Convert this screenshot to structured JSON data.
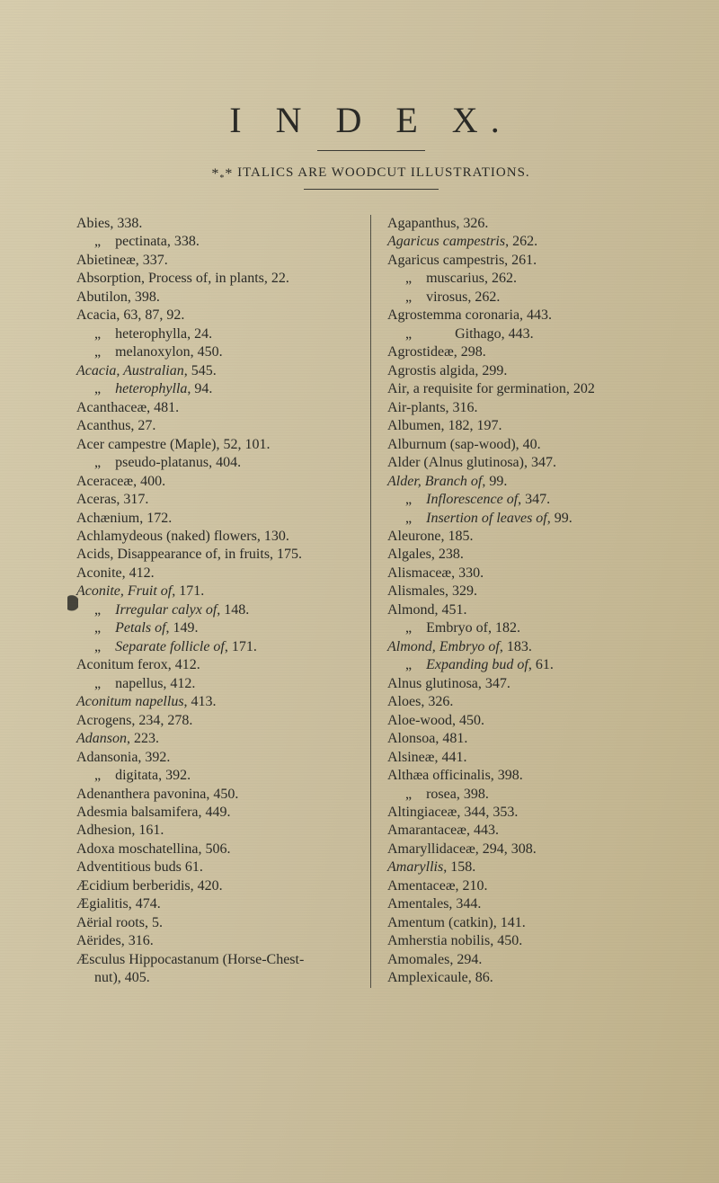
{
  "title": "I N D E X.",
  "subtitle_prefix": "*",
  "subtitle_sub": "*",
  "subtitle_suffix": "*",
  "subtitle_text": " ITALICS ARE WOODCUT ILLUSTRATIONS.",
  "left": [
    {
      "t": "Abies, 338."
    },
    {
      "t": "     „    pectinata, 338.",
      "s": 1
    },
    {
      "t": "Abietineæ, 337."
    },
    {
      "t": "Absorption, Process of, in plants, 22."
    },
    {
      "t": "Abutilon, 398."
    },
    {
      "t": "Acacia, 63, 87, 92."
    },
    {
      "t": "     „    heterophylla, 24.",
      "s": 1
    },
    {
      "t": "     „    melanoxylon, 450.",
      "s": 1
    },
    {
      "html": "<span class='it'>Acacia, Australian</span>, 545."
    },
    {
      "html": "     „    <span class='it'>heterophylla</span>, 94.",
      "s": 1
    },
    {
      "t": "Acanthaceæ, 481."
    },
    {
      "t": "Acanthus, 27."
    },
    {
      "t": "Acer campestre (Maple), 52, 101."
    },
    {
      "t": "     „    pseudo-platanus, 404.",
      "s": 1
    },
    {
      "t": "Aceraceæ, 400."
    },
    {
      "t": "Aceras, 317."
    },
    {
      "t": "Achænium, 172."
    },
    {
      "t": "Achlamydeous (naked) flowers, 130."
    },
    {
      "t": "Acids, Disappearance of, in fruits, 175."
    },
    {
      "t": "Aconite, 412."
    },
    {
      "html": "<span class='it'>Aconite, Fruit of</span>, 171."
    },
    {
      "html": "     „    <span class='it'>Irregular calyx of</span>, 148.",
      "s": 1
    },
    {
      "html": "     „    <span class='it'>Petals of</span>, 149.",
      "s": 1
    },
    {
      "html": "     „    <span class='it'>Separate follicle of</span>, 171.",
      "s": 1
    },
    {
      "t": "Aconitum ferox, 412."
    },
    {
      "t": "     „    napellus, 412.",
      "s": 1
    },
    {
      "html": "<span class='it'>Aconitum napellus</span>, 413."
    },
    {
      "t": "Acrogens, 234, 278."
    },
    {
      "html": "<span class='it'>Adanson</span>, 223."
    },
    {
      "t": "Adansonia, 392."
    },
    {
      "t": "     „    digitata, 392.",
      "s": 1
    },
    {
      "t": "Adenanthera pavonina, 450."
    },
    {
      "t": "Adesmia balsamifera, 449."
    },
    {
      "t": "Adhesion, 161."
    },
    {
      "t": "Adoxa moschatellina, 506."
    },
    {
      "t": "Adventitious buds 61."
    },
    {
      "t": "Æcidium berberidis, 420."
    },
    {
      "t": "Ægialitis, 474."
    },
    {
      "t": "Aërial roots, 5."
    },
    {
      "t": "Aërides, 316."
    },
    {
      "t": "Æsculus Hippocastanum (Horse-Chest-"
    },
    {
      "t": "     nut), 405.",
      "s": 1
    }
  ],
  "right": [
    {
      "t": "Agapanthus, 326."
    },
    {
      "html": "<span class='it'>Agaricus campestris</span>, 262."
    },
    {
      "t": "Agaricus campestris, 261."
    },
    {
      "t": "     „    muscarius, 262.",
      "s": 1
    },
    {
      "t": "     „    virosus, 262.",
      "s": 1
    },
    {
      "t": "Agrostemma coronaria, 443."
    },
    {
      "t": "     „            Githago, 443.",
      "s": 1
    },
    {
      "t": "Agrostideæ, 298."
    },
    {
      "t": "Agrostis algida, 299."
    },
    {
      "t": "Air, a requisite for germination, 202"
    },
    {
      "t": "Air-plants, 316."
    },
    {
      "t": "Albumen, 182, 197."
    },
    {
      "t": "Alburnum (sap-wood), 40."
    },
    {
      "t": "Alder (Alnus glutinosa), 347."
    },
    {
      "html": "<span class='it'>Alder, Branch of</span>, 99."
    },
    {
      "html": "     „    <span class='it'>Inflorescence of</span>, 347.",
      "s": 1
    },
    {
      "html": "     „    <span class='it'>Insertion of leaves of</span>, 99.",
      "s": 1
    },
    {
      "t": "Aleurone, 185."
    },
    {
      "t": "Algales, 238."
    },
    {
      "t": "Alismaceæ, 330."
    },
    {
      "t": "Alismales, 329."
    },
    {
      "t": "Almond, 451."
    },
    {
      "t": "     „    Embryo of, 182.",
      "s": 1
    },
    {
      "html": "<span class='it'>Almond, Embryo of</span>, 183."
    },
    {
      "html": "     „    <span class='it'>Expanding bud of</span>, 61.",
      "s": 1
    },
    {
      "t": "Alnus glutinosa, 347."
    },
    {
      "t": "Aloes, 326."
    },
    {
      "t": "Aloe-wood, 450."
    },
    {
      "t": "Alonsoa, 481."
    },
    {
      "t": "Alsineæ, 441."
    },
    {
      "t": "Althæa officinalis, 398."
    },
    {
      "t": "     „    rosea, 398.",
      "s": 1
    },
    {
      "t": "Altingiaceæ, 344, 353."
    },
    {
      "t": "Amarantaceæ, 443."
    },
    {
      "t": "Amaryllidaceæ, 294, 308."
    },
    {
      "html": "<span class='it'>Amaryllis</span>, 158."
    },
    {
      "t": "Amentaceæ, 210."
    },
    {
      "t": "Amentales, 344."
    },
    {
      "t": "Amentum (catkin), 141."
    },
    {
      "t": "Amherstia nobilis, 450."
    },
    {
      "t": "Amomales, 294."
    },
    {
      "t": "Amplexicaule, 86."
    }
  ]
}
